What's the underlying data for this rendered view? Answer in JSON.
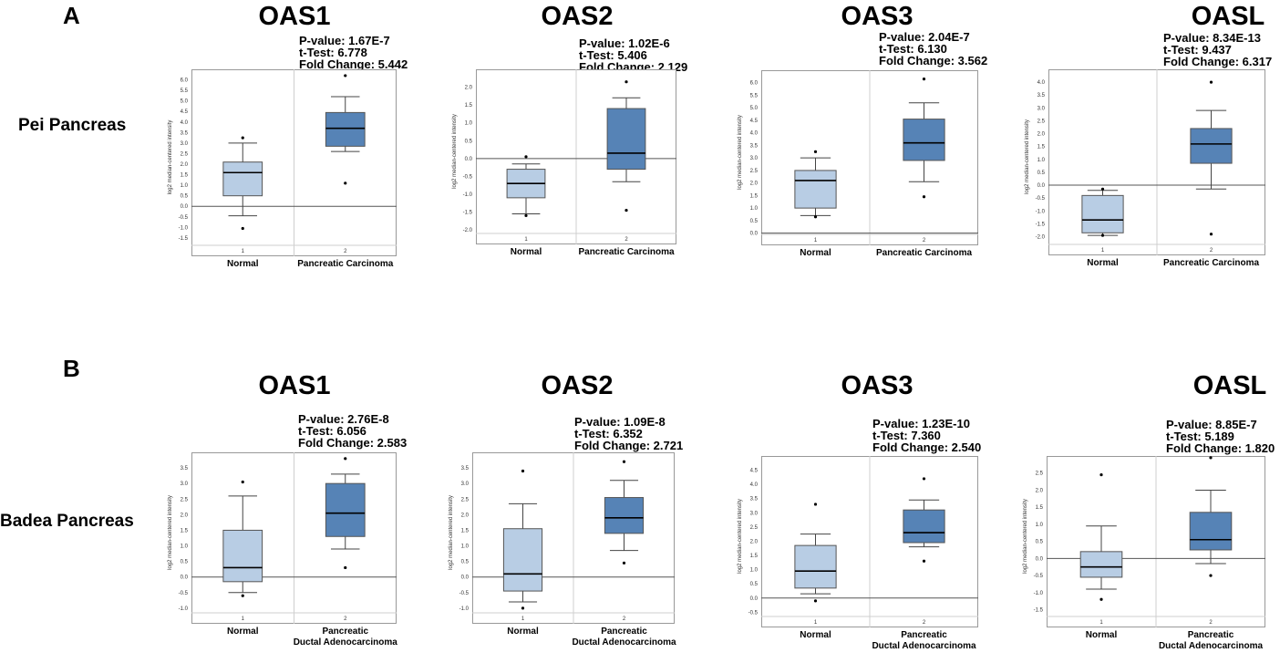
{
  "figure": {
    "panel_a": "A",
    "panel_b": "B",
    "row_a_label": "Pei Pancreas",
    "row_b_label": "Badea Pancreas"
  },
  "colors": {
    "normal_box": "#b8cde4",
    "cancer_box": "#5683b6",
    "frame": "#999999",
    "grid": "#cfcfcf"
  },
  "chart_data": [
    {
      "type": "box",
      "gene": "OAS1",
      "dataset": "Pei Pancreas",
      "ylabel": "log2 median-centered intensity",
      "ylim": [
        -1.85,
        6.5
      ],
      "yticks": [
        "6.5",
        "6.0",
        "5.5",
        "5.0",
        "4.5",
        "4.0",
        "3.5",
        "3.0",
        "2.5",
        "2.0",
        "1.5",
        "1.0",
        "0.5",
        "0.0",
        "-0.5",
        "-1.0",
        "-1.5"
      ],
      "tick_values": [
        6.5,
        6.0,
        5.5,
        5.0,
        4.5,
        4.0,
        3.5,
        3.0,
        2.5,
        2.0,
        1.5,
        1.0,
        0.5,
        0.0,
        -0.5,
        -1.0,
        -1.5
      ],
      "pvalue": "P-value: 1.67E-7",
      "ttest": "t-Test: 6.778",
      "fold": "Fold Change: 5.442",
      "groups": [
        {
          "index": "1",
          "name": "Normal",
          "name2": "",
          "min": -0.45,
          "q1": 0.5,
          "median": 1.6,
          "q3": 2.1,
          "max": 3.0,
          "outliers": [
            3.25,
            -1.05
          ]
        },
        {
          "index": "2",
          "name": "Pancreatic Carcinoma",
          "name2": "",
          "min": 2.6,
          "q1": 2.85,
          "median": 3.7,
          "q3": 4.45,
          "max": 5.2,
          "outliers": [
            6.2,
            1.1
          ]
        }
      ]
    },
    {
      "type": "box",
      "gene": "OAS2",
      "dataset": "Pei Pancreas",
      "ylabel": "log2 median-centered intensity",
      "ylim": [
        -2.1,
        2.5
      ],
      "yticks": [
        "2.5",
        "2.0",
        "1.5",
        "1.0",
        "0.5",
        "0.0",
        "-0.5",
        "-1.0",
        "-1.5",
        "-2.0"
      ],
      "tick_values": [
        2.5,
        2.0,
        1.5,
        1.0,
        0.5,
        0.0,
        -0.5,
        -1.0,
        -1.5,
        -2.0
      ],
      "pvalue": "P-value: 1.02E-6",
      "ttest": "t-Test: 5.406",
      "fold": "Fold Change: 2.129",
      "groups": [
        {
          "index": "1",
          "name": "Normal",
          "name2": "",
          "min": -1.55,
          "q1": -1.1,
          "median": -0.7,
          "q3": -0.3,
          "max": -0.15,
          "outliers": [
            0.05,
            -1.6
          ]
        },
        {
          "index": "2",
          "name": "Pancreatic Carcinoma",
          "name2": "",
          "min": -0.65,
          "q1": -0.3,
          "median": 0.15,
          "q3": 1.4,
          "max": 1.7,
          "outliers": [
            2.15,
            -1.45
          ]
        }
      ]
    },
    {
      "type": "box",
      "gene": "OAS3",
      "dataset": "Pei Pancreas",
      "ylabel": "log2 median-centered intensity",
      "ylim": [
        -0.05,
        6.5
      ],
      "yticks": [
        "6.5",
        "6.0",
        "5.5",
        "5.0",
        "4.5",
        "4.0",
        "3.5",
        "3.0",
        "2.5",
        "2.0",
        "1.5",
        "1.0",
        "0.5",
        "0.0"
      ],
      "tick_values": [
        6.5,
        6.0,
        5.5,
        5.0,
        4.5,
        4.0,
        3.5,
        3.0,
        2.5,
        2.0,
        1.5,
        1.0,
        0.5,
        0.0
      ],
      "pvalue": "P-value: 2.04E-7",
      "ttest": "t-Test: 6.130",
      "fold": "Fold Change: 3.562",
      "groups": [
        {
          "index": "1",
          "name": "Normal",
          "name2": "",
          "min": 0.7,
          "q1": 1.0,
          "median": 2.1,
          "q3": 2.5,
          "max": 3.0,
          "outliers": [
            3.25,
            0.65
          ]
        },
        {
          "index": "2",
          "name": "Pancreatic Carcinoma",
          "name2": "",
          "min": 2.05,
          "q1": 2.9,
          "median": 3.6,
          "q3": 4.55,
          "max": 5.2,
          "outliers": [
            6.15,
            1.45
          ]
        }
      ]
    },
    {
      "type": "box",
      "gene": "OASL",
      "dataset": "Pei Pancreas",
      "ylabel": "log2 median-centered intensity",
      "ylim": [
        -2.3,
        4.5
      ],
      "yticks": [
        "4.5",
        "4.0",
        "3.5",
        "3.0",
        "2.5",
        "2.0",
        "1.5",
        "1.0",
        "0.5",
        "0.0",
        "-0.5",
        "-1.0",
        "-1.5",
        "-2.0"
      ],
      "tick_values": [
        4.5,
        4.0,
        3.5,
        3.0,
        2.5,
        2.0,
        1.5,
        1.0,
        0.5,
        0.0,
        -0.5,
        -1.0,
        -1.5,
        -2.0
      ],
      "pvalue": "P-value: 8.34E-13",
      "ttest": "t-Test: 9.437",
      "fold": "Fold Change: 6.317",
      "groups": [
        {
          "index": "1",
          "name": "Normal",
          "name2": "",
          "min": -1.95,
          "q1": -1.85,
          "median": -1.35,
          "q3": -0.4,
          "max": -0.2,
          "outliers": [
            -0.15,
            -1.95
          ]
        },
        {
          "index": "2",
          "name": "Pancreatic Carcinoma",
          "name2": "",
          "min": -0.15,
          "q1": 0.85,
          "median": 1.6,
          "q3": 2.2,
          "max": 2.9,
          "outliers": [
            4.0,
            -1.9
          ]
        }
      ]
    },
    {
      "type": "box",
      "gene": "OAS1",
      "dataset": "Badea Pancreas",
      "ylabel": "log2 median-centered intensity",
      "ylim": [
        -1.15,
        4.0
      ],
      "yticks": [
        "4.0",
        "3.5",
        "3.0",
        "2.5",
        "2.0",
        "1.5",
        "1.0",
        "0.5",
        "0.0",
        "-0.5",
        "-1.0"
      ],
      "tick_values": [
        4.0,
        3.5,
        3.0,
        2.5,
        2.0,
        1.5,
        1.0,
        0.5,
        0.0,
        -0.5,
        -1.0
      ],
      "pvalue": "P-value: 2.76E-8",
      "ttest": "t-Test: 6.056",
      "fold": "Fold Change: 2.583",
      "groups": [
        {
          "index": "1",
          "name": "Normal",
          "name2": "",
          "min": -0.5,
          "q1": -0.15,
          "median": 0.3,
          "q3": 1.5,
          "max": 2.6,
          "outliers": [
            3.05,
            -0.6
          ]
        },
        {
          "index": "2",
          "name": "Pancreatic",
          "name2": "Ductal Adenocarcinoma",
          "min": 0.9,
          "q1": 1.3,
          "median": 2.05,
          "q3": 3.0,
          "max": 3.3,
          "outliers": [
            3.8,
            0.3
          ]
        }
      ]
    },
    {
      "type": "box",
      "gene": "OAS2",
      "dataset": "Badea Pancreas",
      "ylabel": "log2 median-centered intensity",
      "ylim": [
        -1.15,
        4.0
      ],
      "yticks": [
        "4.0",
        "3.5",
        "3.0",
        "2.5",
        "2.0",
        "1.5",
        "1.0",
        "0.5",
        "0.0",
        "-0.5",
        "-1.0"
      ],
      "tick_values": [
        4.0,
        3.5,
        3.0,
        2.5,
        2.0,
        1.5,
        1.0,
        0.5,
        0.0,
        -0.5,
        -1.0
      ],
      "pvalue": "P-value: 1.09E-8",
      "ttest": "t-Test: 6.352",
      "fold": "Fold Change: 2.721",
      "groups": [
        {
          "index": "1",
          "name": "Normal",
          "name2": "",
          "min": -0.8,
          "q1": -0.45,
          "median": 0.1,
          "q3": 1.55,
          "max": 2.35,
          "outliers": [
            3.4,
            -1.0
          ]
        },
        {
          "index": "2",
          "name": "Pancreatic",
          "name2": "Ductal Adenocarcinoma",
          "min": 0.85,
          "q1": 1.4,
          "median": 1.9,
          "q3": 2.55,
          "max": 3.1,
          "outliers": [
            3.7,
            0.45
          ]
        }
      ]
    },
    {
      "type": "box",
      "gene": "OAS3",
      "dataset": "Badea Pancreas",
      "ylabel": "log2 median-centered intensity",
      "ylim": [
        -0.65,
        5.0
      ],
      "yticks": [
        "5.0",
        "4.5",
        "4.0",
        "3.5",
        "3.0",
        "2.5",
        "2.0",
        "1.5",
        "1.0",
        "0.5",
        "0.0",
        "-0.5"
      ],
      "tick_values": [
        5.0,
        4.5,
        4.0,
        3.5,
        3.0,
        2.5,
        2.0,
        1.5,
        1.0,
        0.5,
        0.0,
        -0.5
      ],
      "pvalue": "P-value: 1.23E-10",
      "ttest": "t-Test: 7.360",
      "fold": "Fold Change: 2.540",
      "groups": [
        {
          "index": "1",
          "name": "Normal",
          "name2": "",
          "min": 0.15,
          "q1": 0.35,
          "median": 0.95,
          "q3": 1.85,
          "max": 2.25,
          "outliers": [
            3.3,
            -0.1
          ]
        },
        {
          "index": "2",
          "name": "Pancreatic",
          "name2": "Ductal Adenocarcinoma",
          "min": 1.8,
          "q1": 1.95,
          "median": 2.3,
          "q3": 3.1,
          "max": 3.45,
          "outliers": [
            4.2,
            1.3
          ]
        }
      ]
    },
    {
      "type": "box",
      "gene": "OASL",
      "dataset": "Badea Pancreas",
      "ylabel": "log2 median-centered intensity",
      "ylim": [
        -1.7,
        3.0
      ],
      "yticks": [
        "3.0",
        "2.5",
        "2.0",
        "1.5",
        "1.0",
        "0.5",
        "0.0",
        "-0.5",
        "-1.0",
        "-1.5"
      ],
      "tick_values": [
        3.0,
        2.5,
        2.0,
        1.5,
        1.0,
        0.5,
        0.0,
        -0.5,
        -1.0,
        -1.5
      ],
      "pvalue": "P-value: 8.85E-7",
      "ttest": "t-Test: 5.189",
      "fold": "Fold Change: 1.820",
      "groups": [
        {
          "index": "1",
          "name": "Normal",
          "name2": "",
          "min": -0.9,
          "q1": -0.55,
          "median": -0.25,
          "q3": 0.2,
          "max": 0.95,
          "outliers": [
            2.45,
            -1.2
          ]
        },
        {
          "index": "2",
          "name": "Pancreatic",
          "name2": "Ductal Adenocarcinoma",
          "min": -0.15,
          "q1": 0.25,
          "median": 0.55,
          "q3": 1.35,
          "max": 2.0,
          "outliers": [
            2.95,
            -0.5
          ]
        }
      ]
    }
  ]
}
